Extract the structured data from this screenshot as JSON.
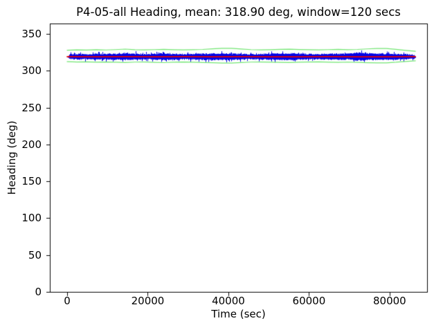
{
  "figure": {
    "background": "#ffffff",
    "text_color": "#000000",
    "frame_color": "#000000"
  },
  "chart_data": {
    "type": "line",
    "title": "P4-05-all Heading, mean: 318.90 deg, window=120 secs",
    "xlabel": "Time (sec)",
    "ylabel": "Heading (deg)",
    "xlim": [
      -4300,
      89300
    ],
    "ylim": [
      0,
      364
    ],
    "xticks": [
      0,
      20000,
      40000,
      60000,
      80000
    ],
    "yticks": [
      0,
      50,
      100,
      150,
      200,
      250,
      300,
      350
    ],
    "grid": false,
    "legend": null,
    "stats": {
      "dataset": "P4-05-all",
      "mean_deg": 318.9,
      "window_secs": 120
    },
    "series": [
      {
        "name": "raw-heading-band",
        "type": "noisy-band",
        "color": "#0000e6",
        "t": [
          0,
          2400,
          4800,
          7200,
          9600,
          12000,
          14400,
          16800,
          19200,
          21600,
          24000,
          26400,
          28800,
          31200,
          33600,
          36000,
          38400,
          40800,
          43200,
          45600,
          48000,
          50400,
          52800,
          55200,
          57600,
          60000,
          62400,
          64800,
          67200,
          69600,
          72000,
          74400,
          76800,
          79200,
          81600,
          84000,
          86400
        ],
        "top": [
          321.6,
          322.5,
          322.2,
          322.8,
          322.4,
          322.9,
          323.3,
          322.6,
          322.3,
          322.8,
          323.5,
          322.7,
          322.4,
          322.6,
          322.9,
          323.1,
          323.2,
          323.0,
          322.5,
          322.3,
          322.6,
          322.9,
          323.1,
          323.4,
          322.8,
          322.5,
          322.3,
          322.7,
          323.0,
          322.6,
          324.3,
          323.2,
          322.8,
          323.0,
          322.6,
          322.2,
          321.4
        ],
        "bottom": [
          316.4,
          315.5,
          315.8,
          315.2,
          315.6,
          315.1,
          314.8,
          315.3,
          315.6,
          315.0,
          314.4,
          315.2,
          315.5,
          315.3,
          314.9,
          314.7,
          314.8,
          314.8,
          315.3,
          315.6,
          315.4,
          315.1,
          314.9,
          314.6,
          315.2,
          315.5,
          315.7,
          315.2,
          314.9,
          315.4,
          313.9,
          314.7,
          315.0,
          314.9,
          315.4,
          315.8,
          316.2
        ]
      },
      {
        "name": "upper-envelope",
        "type": "line",
        "color": "#70e570",
        "t": [
          0,
          2400,
          4800,
          7200,
          9600,
          12000,
          14400,
          16800,
          19200,
          21600,
          24000,
          26400,
          28800,
          31200,
          33600,
          36000,
          38400,
          40800,
          43200,
          45600,
          48000,
          50400,
          52800,
          55200,
          57600,
          60000,
          62400,
          64800,
          67200,
          69600,
          72000,
          74400,
          76800,
          79200,
          81600,
          84000,
          86400
        ],
        "v": [
          327.8,
          328.2,
          328.0,
          328.4,
          328.1,
          328.6,
          329.3,
          328.4,
          328.2,
          328.6,
          329.0,
          328.5,
          328.2,
          328.4,
          328.8,
          329.6,
          330.3,
          330.4,
          329.4,
          328.6,
          328.3,
          328.5,
          328.9,
          329.2,
          328.7,
          328.4,
          328.2,
          328.6,
          328.9,
          328.5,
          328.8,
          329.5,
          330.1,
          330.2,
          329.0,
          327.6,
          326.3
        ]
      },
      {
        "name": "lower-envelope",
        "type": "line",
        "color": "#70e570",
        "t": [
          0,
          2400,
          4800,
          7200,
          9600,
          12000,
          14400,
          16800,
          19200,
          21600,
          24000,
          26400,
          28800,
          31200,
          33600,
          36000,
          38400,
          40800,
          43200,
          45600,
          48000,
          50400,
          52800,
          55200,
          57600,
          60000,
          62400,
          64800,
          67200,
          69600,
          72000,
          74400,
          76800,
          79200,
          81600,
          84000,
          86400
        ],
        "v": [
          312.2,
          311.8,
          312.0,
          311.6,
          311.9,
          311.5,
          311.2,
          311.7,
          311.9,
          311.4,
          311.0,
          311.5,
          311.8,
          311.6,
          311.2,
          310.8,
          310.4,
          310.5,
          311.2,
          311.7,
          311.9,
          311.6,
          311.3,
          311.1,
          311.5,
          311.8,
          312.0,
          311.6,
          311.3,
          311.7,
          311.4,
          310.9,
          310.6,
          310.7,
          311.5,
          312.6,
          313.4
        ]
      },
      {
        "name": "rolling-mean",
        "type": "line",
        "color": "#e80000",
        "t": [
          0,
          7200,
          14400,
          21600,
          28800,
          36000,
          43200,
          50400,
          57600,
          64800,
          72000,
          79200,
          86400
        ],
        "v": [
          319.0,
          318.9,
          319.1,
          318.8,
          319.0,
          318.9,
          319.0,
          318.8,
          318.9,
          319.1,
          318.9,
          318.8,
          319.0
        ]
      }
    ]
  }
}
